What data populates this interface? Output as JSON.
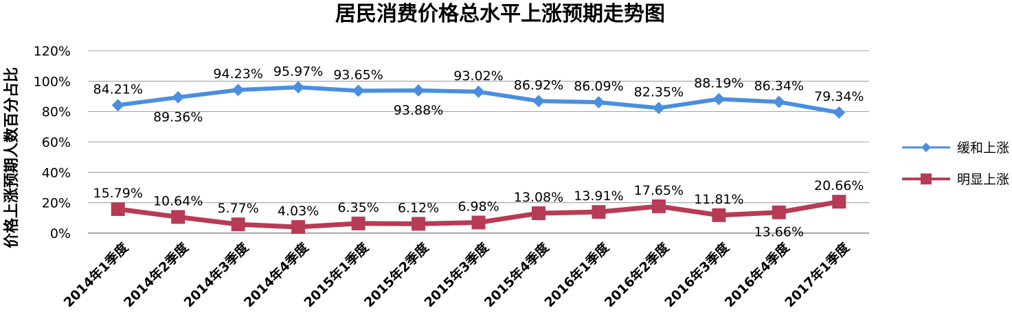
{
  "chart_data": {
    "type": "line",
    "title": "居民消费价格总水平上涨预期走势图",
    "xlabel": "",
    "ylabel": "价格上涨预期人数百分占比",
    "ylim": [
      0,
      120
    ],
    "yticks": [
      "0%",
      "20%",
      "40%",
      "60%",
      "80%",
      "100%",
      "120%"
    ],
    "grid": true,
    "legend_position": "right",
    "categories": [
      "2014年1季度",
      "2014年2季度",
      "2014年3季度",
      "2014年4季度",
      "2015年1季度",
      "2015年2季度",
      "2015年3季度",
      "2015年4季度",
      "2016年1季度",
      "2016年2季度",
      "2016年3季度",
      "2016年4季度",
      "2017年1季度"
    ],
    "series": [
      {
        "name": "缓和上涨",
        "color": "#4a8fdf",
        "marker": "diamond",
        "values": [
          84.21,
          89.36,
          94.23,
          95.97,
          93.65,
          93.88,
          93.02,
          86.92,
          86.09,
          82.35,
          88.19,
          86.34,
          79.34
        ],
        "labels": [
          "84.21%",
          "89.36%",
          "94.23%",
          "95.97%",
          "93.65%",
          "93.88%",
          "93.02%",
          "86.92%",
          "86.09%",
          "82.35%",
          "88.19%",
          "86.34%",
          "79.34%"
        ],
        "label_side": [
          "above",
          "below",
          "above",
          "above",
          "above",
          "below",
          "above",
          "above",
          "above",
          "above",
          "above",
          "above",
          "above"
        ]
      },
      {
        "name": "明显上涨",
        "color": "#b83b55",
        "marker": "square",
        "values": [
          15.79,
          10.64,
          5.77,
          4.03,
          6.35,
          6.12,
          6.98,
          13.08,
          13.91,
          17.65,
          11.81,
          13.66,
          20.66
        ],
        "labels": [
          "15.79%",
          "10.64%",
          "5.77%",
          "4.03%",
          "6.35%",
          "6.12%",
          "6.98%",
          "13.08%",
          "13.91%",
          "17.65%",
          "11.81%",
          "13.66%",
          "20.66%"
        ],
        "label_side": [
          "above",
          "above",
          "above",
          "above",
          "above",
          "above",
          "above",
          "above",
          "above",
          "above",
          "above",
          "below",
          "above"
        ]
      }
    ]
  }
}
